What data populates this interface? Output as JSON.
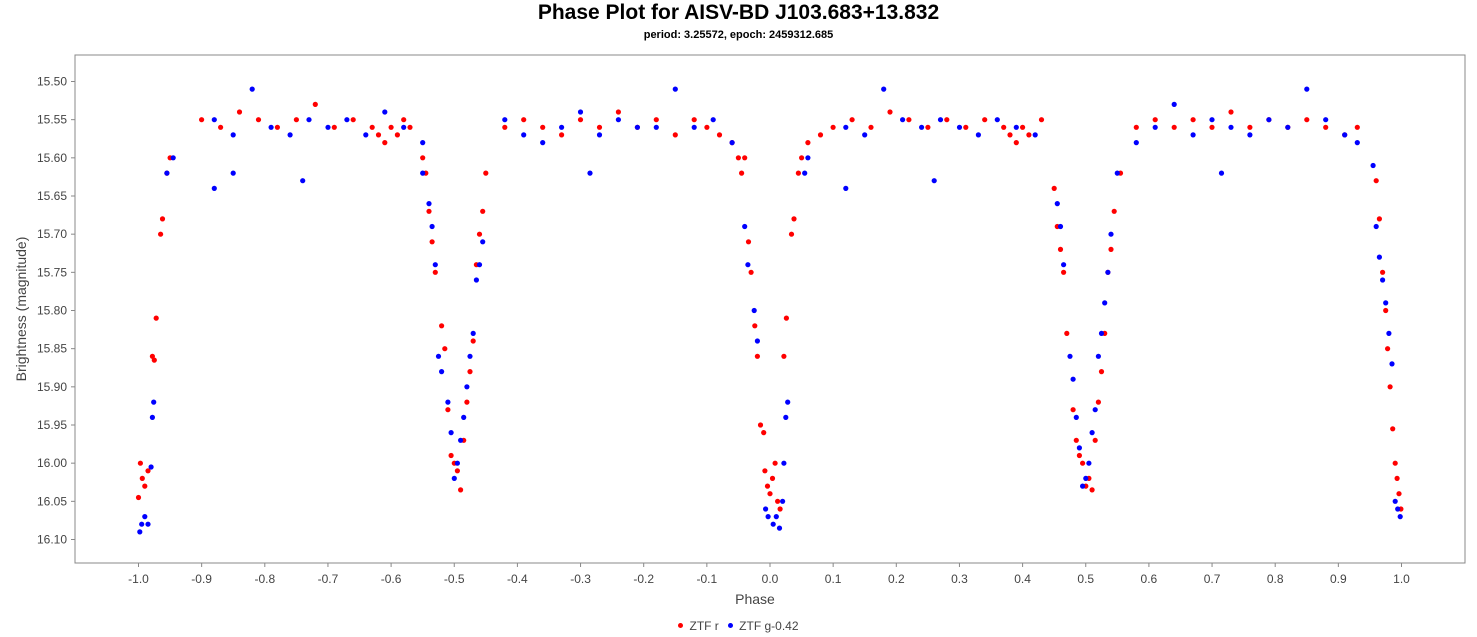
{
  "chart_data": {
    "type": "scatter",
    "title": "Phase Plot for AISV-BD J103.683+13.832",
    "subtitle": "period: 3.25572, epoch: 2459312.685",
    "xlabel": "Phase",
    "ylabel": "Brightness (magnitude)",
    "xlim": [
      -1.1,
      1.1
    ],
    "ylim": [
      16.135,
      15.465
    ],
    "y_inverted": true,
    "x_ticks": [
      "-1.0",
      "-0.9",
      "-0.8",
      "-0.7",
      "-0.6",
      "-0.5",
      "-0.4",
      "-0.3",
      "-0.2",
      "-0.1",
      "0.0",
      "0.1",
      "0.2",
      "0.3",
      "0.4",
      "0.5",
      "0.6",
      "0.7",
      "0.8",
      "0.9",
      "1.0"
    ],
    "y_ticks": [
      "15.50",
      "15.55",
      "15.60",
      "15.65",
      "15.70",
      "15.75",
      "15.80",
      "15.85",
      "15.90",
      "15.95",
      "16.00",
      "16.05",
      "16.10"
    ],
    "grid": false,
    "legend_position": "bottom-center",
    "series": [
      {
        "name": "ZTF r",
        "color": "#ff0000",
        "points": [
          [
            0.0,
            16.04
          ],
          [
            0.004,
            16.02
          ],
          [
            0.008,
            16.0
          ],
          [
            0.012,
            16.05
          ],
          [
            0.016,
            16.06
          ],
          [
            -0.004,
            16.03
          ],
          [
            -0.008,
            16.01
          ],
          [
            -0.01,
            15.96
          ],
          [
            -0.015,
            15.95
          ],
          [
            0.022,
            15.86
          ],
          [
            0.026,
            15.81
          ],
          [
            0.034,
            15.7
          ],
          [
            0.038,
            15.68
          ],
          [
            -0.02,
            15.86
          ],
          [
            -0.024,
            15.82
          ],
          [
            -0.03,
            15.75
          ],
          [
            -0.034,
            15.71
          ],
          [
            0.045,
            15.62
          ],
          [
            0.05,
            15.6
          ],
          [
            0.06,
            15.58
          ],
          [
            -0.045,
            15.62
          ],
          [
            -0.05,
            15.6
          ],
          [
            0.48,
            15.93
          ],
          [
            0.485,
            15.97
          ],
          [
            0.49,
            15.99
          ],
          [
            0.495,
            16.0
          ],
          [
            0.5,
            16.03
          ],
          [
            0.505,
            16.02
          ],
          [
            0.51,
            16.035
          ],
          [
            0.515,
            15.97
          ],
          [
            0.52,
            15.92
          ],
          [
            0.525,
            15.88
          ],
          [
            0.53,
            15.83
          ],
          [
            0.535,
            15.75
          ],
          [
            0.54,
            15.72
          ],
          [
            0.545,
            15.67
          ],
          [
            0.555,
            15.62
          ],
          [
            0.46,
            15.72
          ],
          [
            0.465,
            15.75
          ],
          [
            0.47,
            15.83
          ],
          [
            0.455,
            15.69
          ],
          [
            0.45,
            15.64
          ],
          [
            0.96,
            15.63
          ],
          [
            0.965,
            15.68
          ],
          [
            0.97,
            15.75
          ],
          [
            0.975,
            15.8
          ],
          [
            0.978,
            15.85
          ],
          [
            0.982,
            15.9
          ],
          [
            0.986,
            15.955
          ],
          [
            0.99,
            16.0
          ],
          [
            0.993,
            16.02
          ],
          [
            0.996,
            16.04
          ],
          [
            0.999,
            16.06
          ],
          [
            -1.0,
            16.045
          ],
          [
            -0.997,
            16.0
          ],
          [
            -0.994,
            16.02
          ],
          [
            -0.99,
            16.03
          ],
          [
            -0.985,
            16.01
          ],
          [
            -0.978,
            15.86
          ],
          [
            -0.975,
            15.865
          ],
          [
            -0.972,
            15.81
          ],
          [
            -0.965,
            15.7
          ],
          [
            -0.962,
            15.68
          ],
          [
            -0.955,
            15.62
          ],
          [
            -0.95,
            15.6
          ],
          [
            -0.52,
            15.82
          ],
          [
            -0.515,
            15.85
          ],
          [
            -0.51,
            15.93
          ],
          [
            -0.505,
            15.99
          ],
          [
            -0.5,
            16.0
          ],
          [
            -0.495,
            16.01
          ],
          [
            -0.49,
            16.035
          ],
          [
            -0.485,
            15.97
          ],
          [
            -0.48,
            15.92
          ],
          [
            -0.475,
            15.88
          ],
          [
            -0.47,
            15.84
          ],
          [
            -0.465,
            15.74
          ],
          [
            -0.46,
            15.7
          ],
          [
            -0.455,
            15.67
          ],
          [
            -0.45,
            15.62
          ],
          [
            -0.535,
            15.71
          ],
          [
            -0.53,
            15.75
          ],
          [
            -0.54,
            15.67
          ],
          [
            -0.545,
            15.62
          ],
          [
            -0.55,
            15.6
          ],
          [
            -0.04,
            15.6
          ],
          [
            -0.06,
            15.58
          ],
          [
            -0.08,
            15.57
          ],
          [
            -0.1,
            15.56
          ],
          [
            0.08,
            15.57
          ],
          [
            0.1,
            15.56
          ],
          [
            -0.9,
            15.55
          ],
          [
            -0.87,
            15.56
          ],
          [
            -0.84,
            15.54
          ],
          [
            -0.81,
            15.55
          ],
          [
            -0.78,
            15.56
          ],
          [
            -0.75,
            15.55
          ],
          [
            -0.72,
            15.53
          ],
          [
            -0.69,
            15.56
          ],
          [
            -0.66,
            15.55
          ],
          [
            -0.63,
            15.56
          ],
          [
            -0.62,
            15.57
          ],
          [
            -0.61,
            15.58
          ],
          [
            -0.6,
            15.56
          ],
          [
            -0.59,
            15.57
          ],
          [
            -0.58,
            15.55
          ],
          [
            -0.57,
            15.56
          ],
          [
            -0.42,
            15.56
          ],
          [
            -0.39,
            15.55
          ],
          [
            -0.36,
            15.56
          ],
          [
            -0.33,
            15.57
          ],
          [
            -0.3,
            15.55
          ],
          [
            -0.27,
            15.56
          ],
          [
            -0.24,
            15.54
          ],
          [
            -0.21,
            15.56
          ],
          [
            -0.18,
            15.55
          ],
          [
            -0.15,
            15.57
          ],
          [
            -0.12,
            15.55
          ],
          [
            0.13,
            15.55
          ],
          [
            0.16,
            15.56
          ],
          [
            0.19,
            15.54
          ],
          [
            0.22,
            15.55
          ],
          [
            0.25,
            15.56
          ],
          [
            0.28,
            15.55
          ],
          [
            0.31,
            15.56
          ],
          [
            0.34,
            15.55
          ],
          [
            0.37,
            15.56
          ],
          [
            0.38,
            15.57
          ],
          [
            0.39,
            15.58
          ],
          [
            0.4,
            15.56
          ],
          [
            0.41,
            15.57
          ],
          [
            0.43,
            15.55
          ],
          [
            0.58,
            15.56
          ],
          [
            0.61,
            15.55
          ],
          [
            0.64,
            15.56
          ],
          [
            0.67,
            15.55
          ],
          [
            0.7,
            15.56
          ],
          [
            0.73,
            15.54
          ],
          [
            0.76,
            15.56
          ],
          [
            0.79,
            15.55
          ],
          [
            0.82,
            15.56
          ],
          [
            0.85,
            15.55
          ],
          [
            0.88,
            15.56
          ],
          [
            0.91,
            15.57
          ],
          [
            0.93,
            15.56
          ]
        ]
      },
      {
        "name": "ZTF g-0.42",
        "color": "#0000ff",
        "points": [
          [
            0.005,
            16.08
          ],
          [
            0.01,
            16.07
          ],
          [
            0.015,
            16.085
          ],
          [
            -0.003,
            16.07
          ],
          [
            0.02,
            16.05
          ],
          [
            -0.007,
            16.06
          ],
          [
            0.022,
            16.0
          ],
          [
            0.025,
            15.94
          ],
          [
            0.028,
            15.92
          ],
          [
            -0.02,
            15.84
          ],
          [
            -0.025,
            15.8
          ],
          [
            -0.035,
            15.74
          ],
          [
            -0.04,
            15.69
          ],
          [
            0.055,
            15.62
          ],
          [
            0.06,
            15.6
          ],
          [
            0.475,
            15.86
          ],
          [
            0.48,
            15.89
          ],
          [
            0.485,
            15.94
          ],
          [
            0.49,
            15.98
          ],
          [
            0.495,
            16.03
          ],
          [
            0.5,
            16.02
          ],
          [
            0.505,
            16.0
          ],
          [
            0.51,
            15.96
          ],
          [
            0.515,
            15.93
          ],
          [
            0.52,
            15.86
          ],
          [
            0.525,
            15.83
          ],
          [
            0.53,
            15.79
          ],
          [
            0.535,
            15.75
          ],
          [
            0.54,
            15.7
          ],
          [
            0.46,
            15.69
          ],
          [
            0.465,
            15.74
          ],
          [
            0.455,
            15.66
          ],
          [
            0.55,
            15.62
          ],
          [
            0.955,
            15.61
          ],
          [
            0.96,
            15.69
          ],
          [
            0.965,
            15.73
          ],
          [
            0.97,
            15.76
          ],
          [
            0.975,
            15.79
          ],
          [
            0.98,
            15.83
          ],
          [
            0.985,
            15.87
          ],
          [
            0.99,
            16.05
          ],
          [
            0.994,
            16.06
          ],
          [
            0.998,
            16.07
          ],
          [
            -0.998,
            16.09
          ],
          [
            -0.995,
            16.08
          ],
          [
            -0.99,
            16.07
          ],
          [
            -0.985,
            16.08
          ],
          [
            -0.98,
            16.005
          ],
          [
            -0.978,
            15.94
          ],
          [
            -0.976,
            15.92
          ],
          [
            -0.955,
            15.62
          ],
          [
            -0.945,
            15.6
          ],
          [
            -0.525,
            15.86
          ],
          [
            -0.52,
            15.88
          ],
          [
            -0.51,
            15.92
          ],
          [
            -0.505,
            15.96
          ],
          [
            -0.5,
            16.02
          ],
          [
            -0.495,
            16.0
          ],
          [
            -0.49,
            15.97
          ],
          [
            -0.485,
            15.94
          ],
          [
            -0.48,
            15.9
          ],
          [
            -0.475,
            15.86
          ],
          [
            -0.47,
            15.83
          ],
          [
            -0.465,
            15.76
          ],
          [
            -0.46,
            15.74
          ],
          [
            -0.455,
            15.71
          ],
          [
            -0.54,
            15.66
          ],
          [
            -0.535,
            15.69
          ],
          [
            -0.53,
            15.74
          ],
          [
            -0.55,
            15.62
          ],
          [
            -0.88,
            15.55
          ],
          [
            -0.85,
            15.57
          ],
          [
            -0.82,
            15.51
          ],
          [
            -0.79,
            15.56
          ],
          [
            -0.76,
            15.57
          ],
          [
            -0.73,
            15.55
          ],
          [
            -0.7,
            15.56
          ],
          [
            -0.67,
            15.55
          ],
          [
            -0.64,
            15.57
          ],
          [
            -0.61,
            15.54
          ],
          [
            -0.58,
            15.56
          ],
          [
            -0.55,
            15.58
          ],
          [
            -0.88,
            15.64
          ],
          [
            -0.85,
            15.62
          ],
          [
            -0.74,
            15.63
          ],
          [
            -0.42,
            15.55
          ],
          [
            -0.39,
            15.57
          ],
          [
            -0.36,
            15.58
          ],
          [
            -0.33,
            15.56
          ],
          [
            -0.3,
            15.54
          ],
          [
            -0.27,
            15.57
          ],
          [
            -0.24,
            15.55
          ],
          [
            -0.21,
            15.56
          ],
          [
            -0.18,
            15.56
          ],
          [
            -0.15,
            15.51
          ],
          [
            -0.12,
            15.56
          ],
          [
            -0.09,
            15.55
          ],
          [
            -0.06,
            15.58
          ],
          [
            -0.285,
            15.62
          ],
          [
            0.12,
            15.56
          ],
          [
            0.15,
            15.57
          ],
          [
            0.18,
            15.51
          ],
          [
            0.21,
            15.55
          ],
          [
            0.24,
            15.56
          ],
          [
            0.27,
            15.55
          ],
          [
            0.3,
            15.56
          ],
          [
            0.33,
            15.57
          ],
          [
            0.36,
            15.55
          ],
          [
            0.39,
            15.56
          ],
          [
            0.42,
            15.57
          ],
          [
            0.26,
            15.63
          ],
          [
            0.12,
            15.64
          ],
          [
            0.58,
            15.58
          ],
          [
            0.61,
            15.56
          ],
          [
            0.64,
            15.53
          ],
          [
            0.67,
            15.57
          ],
          [
            0.7,
            15.55
          ],
          [
            0.73,
            15.56
          ],
          [
            0.76,
            15.57
          ],
          [
            0.79,
            15.55
          ],
          [
            0.82,
            15.56
          ],
          [
            0.85,
            15.51
          ],
          [
            0.88,
            15.55
          ],
          [
            0.91,
            15.57
          ],
          [
            0.93,
            15.58
          ],
          [
            0.715,
            15.62
          ]
        ]
      }
    ]
  }
}
